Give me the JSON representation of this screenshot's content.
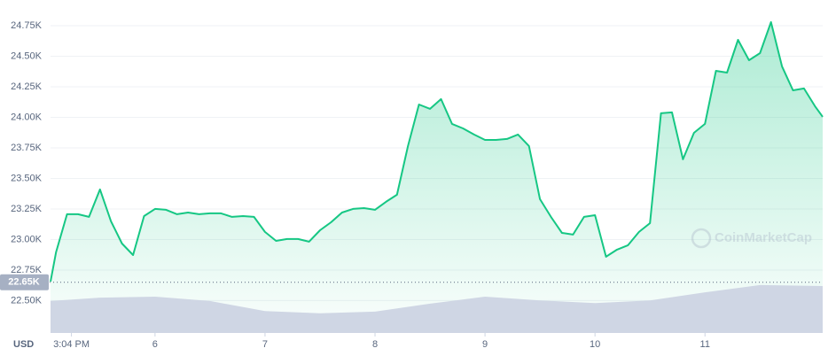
{
  "chart_data": {
    "type": "line",
    "y_unit": "USD",
    "watermark": "CoinMarketCap",
    "grid": true,
    "x": [
      5.05,
      5.1,
      5.2,
      5.3,
      5.4,
      5.5,
      5.6,
      5.7,
      5.8,
      5.9,
      6.0,
      6.1,
      6.2,
      6.3,
      6.4,
      6.5,
      6.6,
      6.7,
      6.8,
      6.9,
      7.0,
      7.1,
      7.2,
      7.3,
      7.4,
      7.5,
      7.6,
      7.7,
      7.8,
      7.9,
      8.0,
      8.1,
      8.2,
      8.3,
      8.4,
      8.5,
      8.6,
      8.7,
      8.8,
      8.9,
      9.0,
      9.1,
      9.2,
      9.3,
      9.4,
      9.5,
      9.6,
      9.7,
      9.8,
      9.9,
      10.0,
      10.1,
      10.2,
      10.3,
      10.4,
      10.5,
      10.6,
      10.7,
      10.8,
      10.9,
      11.0,
      11.1,
      11.2,
      11.3,
      11.4,
      11.5,
      11.6,
      11.7,
      11.8,
      11.9,
      12.0,
      12.07
    ],
    "series": [
      {
        "color": "#16c784",
        "values": [
          22656,
          22895,
          23207,
          23207,
          23185,
          23410,
          23149,
          22967,
          22873,
          23192,
          23250,
          23243,
          23207,
          23221,
          23207,
          23214,
          23214,
          23185,
          23192,
          23185,
          23062,
          22989,
          23004,
          23004,
          22982,
          23076,
          23141,
          23221,
          23250,
          23257,
          23243,
          23308,
          23366,
          23765,
          24105,
          24069,
          24149,
          23946,
          23909,
          23859,
          23815,
          23815,
          23823,
          23859,
          23765,
          23330,
          23185,
          23054,
          23040,
          23185,
          23199,
          22859,
          22917,
          22953,
          23062,
          23134,
          24033,
          24040,
          23656,
          23873,
          23946,
          24380,
          24366,
          24634,
          24467,
          24525,
          24779,
          24417,
          24221,
          24236,
          24091,
          24004
        ]
      },
      {
        "color": "#cfd6e4",
        "axis": "y2",
        "x": [
          5.05,
          5.5,
          6.0,
          6.5,
          7.0,
          7.5,
          8.0,
          8.5,
          9.0,
          9.5,
          10.0,
          10.5,
          11.0,
          11.5,
          12.07
        ],
        "values": [
          9.6,
          10.6,
          10.9,
          9.6,
          6.6,
          5.9,
          6.4,
          8.8,
          10.9,
          9.8,
          9.0,
          9.8,
          12.2,
          14.4,
          14.1
        ]
      }
    ],
    "price_marker": {
      "value": 22650,
      "label": "22.65K"
    },
    "xlim": [
      5.05,
      12.07
    ],
    "xticks": [
      {
        "value": 5.24,
        "label": "3:04 PM"
      },
      6,
      7,
      8,
      9,
      10,
      11
    ],
    "ylim": [
      22235,
      24960
    ],
    "yticks": [
      {
        "value": 22500,
        "label": "22.50K"
      },
      {
        "value": 22750,
        "label": "22.75K"
      },
      {
        "value": 23000,
        "label": "23.00K"
      },
      {
        "value": 23250,
        "label": "23.25K"
      },
      {
        "value": 23500,
        "label": "23.50K"
      },
      {
        "value": 23750,
        "label": "23.75K"
      },
      {
        "value": 24000,
        "label": "24.00K"
      },
      {
        "value": 24250,
        "label": "24.25K"
      },
      {
        "value": 24500,
        "label": "24.50K"
      },
      {
        "value": 24750,
        "label": "24.75K"
      }
    ],
    "y2lim": [
      0,
      100
    ]
  }
}
